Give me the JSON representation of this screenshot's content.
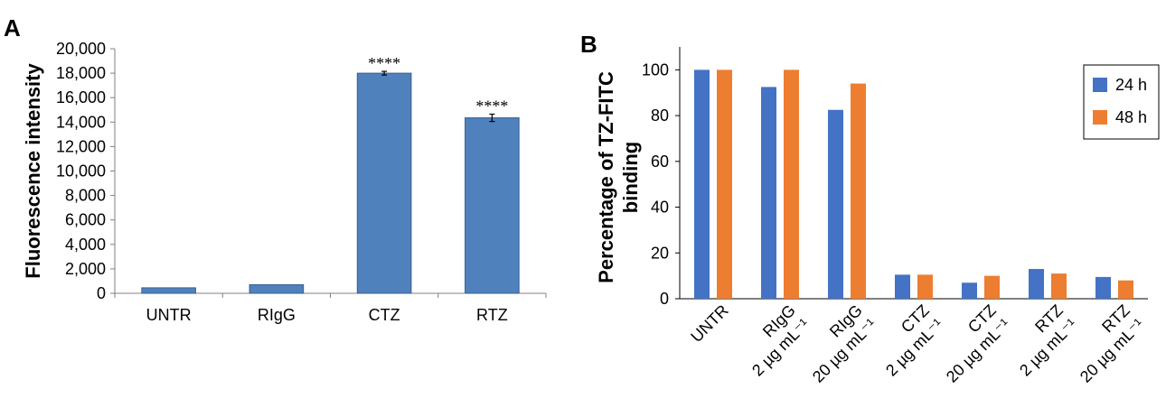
{
  "panels": {
    "a": "A",
    "b": "B"
  },
  "chart_data": [
    {
      "type": "bar",
      "panel": "A",
      "categories": [
        "UNTR",
        "RIgG",
        "CTZ",
        "RTZ"
      ],
      "values": [
        450,
        700,
        18000,
        14350
      ],
      "error": [
        0,
        0,
        150,
        300
      ],
      "annotations": [
        "",
        "",
        "****",
        "****"
      ],
      "ylabel": "Fluorescence intensity",
      "ylim": [
        0,
        20000
      ],
      "yticks": [
        0,
        2000,
        4000,
        6000,
        8000,
        10000,
        12000,
        14000,
        16000,
        18000,
        20000
      ],
      "ytick_labels": [
        "0",
        "2,000",
        "4,000",
        "6,000",
        "8,000",
        "10,000",
        "12,000",
        "14,000",
        "16,000",
        "18,000",
        "20,000"
      ],
      "color": "#4f81bd",
      "grid": false
    },
    {
      "type": "bar",
      "panel": "B",
      "categories": [
        [
          "UNTR"
        ],
        [
          "RIgG",
          "2 µg mL⁻¹"
        ],
        [
          "RIgG",
          "20 µg mL⁻¹"
        ],
        [
          "CTZ",
          "2 µg mL⁻¹"
        ],
        [
          "CTZ",
          "20 µg mL⁻¹"
        ],
        [
          "RTZ",
          "2 µg mL⁻¹"
        ],
        [
          "RTZ",
          "20 µg mL⁻¹"
        ]
      ],
      "series": [
        {
          "name": "24 h",
          "color": "#4472c4",
          "values": [
            100,
            92.5,
            82.5,
            10.5,
            7,
            13,
            9.5
          ]
        },
        {
          "name": "48 h",
          "color": "#ed7d31",
          "values": [
            100,
            100,
            94,
            10.5,
            10,
            11,
            8
          ]
        }
      ],
      "ylabel_lines": [
        "Percentage of TZ-FITC",
        "binding"
      ],
      "ylim": [
        0,
        110
      ],
      "yticks": [
        0,
        20,
        40,
        60,
        80,
        100
      ],
      "ytick_labels": [
        "0",
        "20",
        "40",
        "60",
        "80",
        "100"
      ],
      "legend_position": "top-right",
      "grid": false
    }
  ]
}
